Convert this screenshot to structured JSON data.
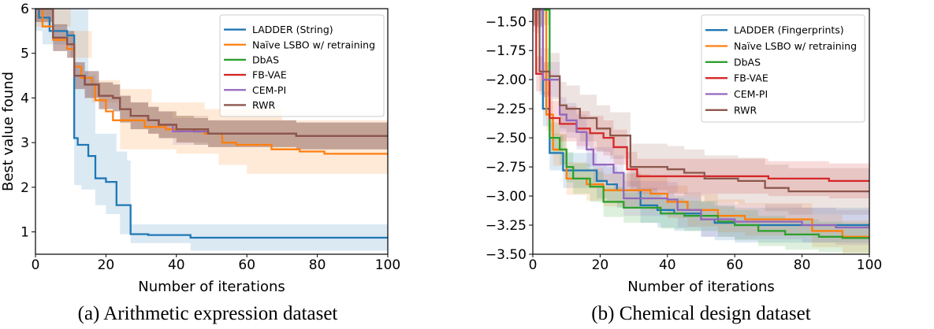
{
  "chart_data": [
    {
      "type": "line",
      "caption": "(a) Arithmetic expression dataset",
      "xlabel": "Number of iterations",
      "ylabel": "Best value found",
      "xlim": [
        0,
        100
      ],
      "ylim": [
        0.5,
        6
      ],
      "xticks": [
        0,
        20,
        40,
        60,
        80,
        100
      ],
      "xtick_labels": [
        "0",
        "20",
        "40",
        "60",
        "80",
        "100"
      ],
      "yticks": [
        1,
        2,
        3,
        4,
        5,
        6
      ],
      "ytick_labels": [
        "1",
        "2",
        "3",
        "4",
        "5",
        "6"
      ],
      "grid": false,
      "legend_position": "top-right",
      "series": [
        {
          "name": "LADDER (String)",
          "color": "#1f77b4",
          "points": [
            [
              0,
              6
            ],
            [
              1,
              5.8
            ],
            [
              4,
              5.5
            ],
            [
              9,
              5.4
            ],
            [
              11,
              3.1
            ],
            [
              12,
              2.95
            ],
            [
              15,
              2.7
            ],
            [
              17,
              2.2
            ],
            [
              20,
              2.12
            ],
            [
              23,
              1.6
            ],
            [
              26,
              1.6
            ],
            [
              27,
              0.95
            ],
            [
              32,
              0.93
            ],
            [
              44,
              0.87
            ],
            [
              100,
              0.87
            ]
          ],
          "upper": [
            [
              0,
              6
            ],
            [
              14,
              6
            ],
            [
              15,
              4.5
            ],
            [
              17,
              3.2
            ],
            [
              23,
              2.8
            ],
            [
              26,
              2.6
            ],
            [
              27,
              1.17
            ],
            [
              100,
              1.17
            ]
          ],
          "lower": [
            [
              0,
              5.5
            ],
            [
              2,
              5.2
            ],
            [
              10,
              4.9
            ],
            [
              11,
              2.05
            ],
            [
              13,
              1.95
            ],
            [
              17,
              1.6
            ],
            [
              20,
              1.4
            ],
            [
              24,
              0.95
            ],
            [
              27,
              0.75
            ],
            [
              44,
              0.58
            ],
            [
              100,
              0.58
            ]
          ]
        },
        {
          "name": "Naïve LSBO w/ retraining",
          "color": "#ff7f0e",
          "points": [
            [
              0,
              6
            ],
            [
              2,
              5.6
            ],
            [
              5,
              5.3
            ],
            [
              9,
              5.1
            ],
            [
              11,
              4.7
            ],
            [
              13,
              4.45
            ],
            [
              16,
              4.3
            ],
            [
              17,
              3.95
            ],
            [
              20,
              3.7
            ],
            [
              22,
              3.5
            ],
            [
              28,
              3.5
            ],
            [
              31,
              3.35
            ],
            [
              37,
              3.3
            ],
            [
              46,
              3.3
            ],
            [
              48,
              3.2
            ],
            [
              53,
              3.0
            ],
            [
              57,
              2.95
            ],
            [
              67,
              2.85
            ],
            [
              75,
              2.8
            ],
            [
              82,
              2.75
            ],
            [
              100,
              2.75
            ]
          ],
          "upper": [
            [
              0,
              6
            ],
            [
              10,
              5.5
            ],
            [
              16,
              4.4
            ],
            [
              24,
              4.2
            ],
            [
              33,
              3.9
            ],
            [
              48,
              3.75
            ],
            [
              70,
              3.5
            ],
            [
              100,
              3.45
            ]
          ],
          "lower": [
            [
              0,
              5.6
            ],
            [
              10,
              4.9
            ],
            [
              16,
              3.9
            ],
            [
              24,
              2.85
            ],
            [
              40,
              2.75
            ],
            [
              52,
              2.5
            ],
            [
              60,
              2.3
            ],
            [
              100,
              2.3
            ]
          ]
        },
        {
          "name": "DbAS",
          "color": "#2ca02c",
          "spread": 0.3,
          "points": [
            [
              0,
              6
            ],
            [
              2,
              6
            ],
            [
              5,
              5.35
            ],
            [
              9,
              5.2
            ],
            [
              11,
              4.5
            ],
            [
              14,
              4.3
            ],
            [
              18,
              4.05
            ],
            [
              22,
              4.0
            ],
            [
              24,
              3.75
            ],
            [
              27,
              3.6
            ],
            [
              32,
              3.5
            ],
            [
              35,
              3.4
            ],
            [
              40,
              3.3
            ],
            [
              45,
              3.25
            ],
            [
              49,
              3.2
            ],
            [
              72,
              3.2
            ],
            [
              74,
              3.15
            ],
            [
              100,
              3.15
            ]
          ]
        },
        {
          "name": "FB-VAE",
          "color": "#d62728",
          "spread": 0.3,
          "points": [
            [
              0,
              6
            ],
            [
              2,
              6
            ],
            [
              5,
              5.35
            ],
            [
              9,
              5.2
            ],
            [
              11,
              4.5
            ],
            [
              14,
              4.3
            ],
            [
              18,
              4.05
            ],
            [
              22,
              4.0
            ],
            [
              24,
              3.75
            ],
            [
              27,
              3.6
            ],
            [
              32,
              3.5
            ],
            [
              35,
              3.4
            ],
            [
              40,
              3.3
            ],
            [
              45,
              3.25
            ],
            [
              49,
              3.2
            ],
            [
              72,
              3.2
            ],
            [
              74,
              3.15
            ],
            [
              100,
              3.15
            ]
          ]
        },
        {
          "name": "CEM-PI",
          "color": "#9467bd",
          "spread": 0.3,
          "points": [
            [
              0,
              6
            ],
            [
              2,
              6
            ],
            [
              5,
              5.35
            ],
            [
              9,
              5.2
            ],
            [
              11,
              4.5
            ],
            [
              14,
              4.3
            ],
            [
              18,
              4.05
            ],
            [
              22,
              4.0
            ],
            [
              24,
              3.75
            ],
            [
              27,
              3.6
            ],
            [
              32,
              3.5
            ],
            [
              35,
              3.4
            ],
            [
              39,
              3.25
            ],
            [
              47,
              3.25
            ],
            [
              49,
              3.2
            ],
            [
              72,
              3.2
            ],
            [
              74,
              3.15
            ],
            [
              100,
              3.15
            ]
          ]
        },
        {
          "name": "RWR",
          "color": "#8c564b",
          "spread": 0.3,
          "points": [
            [
              0,
              6
            ],
            [
              2,
              6
            ],
            [
              5,
              5.35
            ],
            [
              9,
              5.2
            ],
            [
              11,
              4.5
            ],
            [
              14,
              4.3
            ],
            [
              18,
              4.05
            ],
            [
              22,
              4.0
            ],
            [
              24,
              3.75
            ],
            [
              27,
              3.6
            ],
            [
              32,
              3.5
            ],
            [
              35,
              3.4
            ],
            [
              40,
              3.3
            ],
            [
              45,
              3.3
            ],
            [
              49,
              3.2
            ],
            [
              72,
              3.2
            ],
            [
              74,
              3.15
            ],
            [
              100,
              3.15
            ]
          ]
        }
      ]
    },
    {
      "type": "line",
      "caption": "(b) Chemical design dataset",
      "xlabel": "Number of iterations",
      "ylabel": "",
      "xlim": [
        0,
        100
      ],
      "ylim": [
        -3.5,
        -1.39
      ],
      "xticks": [
        0,
        20,
        40,
        60,
        80,
        100
      ],
      "xtick_labels": [
        "0",
        "20",
        "40",
        "60",
        "80",
        "100"
      ],
      "yticks": [
        -1.5,
        -1.75,
        -2.0,
        -2.25,
        -2.5,
        -2.75,
        -3.0,
        -3.25,
        -3.5
      ],
      "ytick_labels": [
        "−1.50",
        "−1.75",
        "−2.00",
        "−2.25",
        "−2.50",
        "−2.75",
        "−3.00",
        "−3.25",
        "−3.50"
      ],
      "grid": false,
      "legend_position": "top-right",
      "series": [
        {
          "name": "LADDER (Fingerprints)",
          "color": "#1f77b4",
          "spread": 0.15,
          "points": [
            [
              0,
              -1.39
            ],
            [
              1,
              -1.4
            ],
            [
              3,
              -2.25
            ],
            [
              5,
              -2.63
            ],
            [
              7,
              -2.63
            ],
            [
              9,
              -2.78
            ],
            [
              16,
              -2.78
            ],
            [
              19,
              -2.87
            ],
            [
              22,
              -2.9
            ],
            [
              25,
              -2.95
            ],
            [
              29,
              -2.95
            ],
            [
              32,
              -3.08
            ],
            [
              37,
              -3.12
            ],
            [
              42,
              -3.15
            ],
            [
              50,
              -3.2
            ],
            [
              54,
              -3.23
            ],
            [
              60,
              -3.25
            ],
            [
              100,
              -3.25
            ]
          ]
        },
        {
          "name": "Naïve LSBO w/ retraining",
          "color": "#ff7f0e",
          "spread": 0.14,
          "points": [
            [
              0,
              -1.39
            ],
            [
              1,
              -1.4
            ],
            [
              4,
              -2.3
            ],
            [
              6,
              -2.6
            ],
            [
              10,
              -2.85
            ],
            [
              16,
              -2.9
            ],
            [
              21,
              -2.95
            ],
            [
              30,
              -2.95
            ],
            [
              35,
              -2.98
            ],
            [
              40,
              -3.05
            ],
            [
              46,
              -3.12
            ],
            [
              55,
              -3.17
            ],
            [
              63,
              -3.2
            ],
            [
              82,
              -3.2
            ],
            [
              83,
              -3.3
            ],
            [
              92,
              -3.35
            ],
            [
              100,
              -3.35
            ]
          ]
        },
        {
          "name": "DbAS",
          "color": "#2ca02c",
          "spread": 0.13,
          "points": [
            [
              0,
              -1.39
            ],
            [
              2,
              -1.4
            ],
            [
              5,
              -2.5
            ],
            [
              8,
              -2.6
            ],
            [
              10,
              -2.75
            ],
            [
              12,
              -2.85
            ],
            [
              17,
              -2.92
            ],
            [
              21,
              -3.05
            ],
            [
              27,
              -3.1
            ],
            [
              38,
              -3.15
            ],
            [
              45,
              -3.17
            ],
            [
              55,
              -3.22
            ],
            [
              60,
              -3.25
            ],
            [
              67,
              -3.3
            ],
            [
              75,
              -3.33
            ],
            [
              85,
              -3.35
            ],
            [
              92,
              -3.36
            ],
            [
              100,
              -3.36
            ]
          ]
        },
        {
          "name": "FB-VAE",
          "color": "#d62728",
          "spread": 0.15,
          "points": [
            [
              0,
              -1.39
            ],
            [
              1,
              -1.95
            ],
            [
              3,
              -2.0
            ],
            [
              5,
              -2.33
            ],
            [
              8,
              -2.38
            ],
            [
              13,
              -2.42
            ],
            [
              17,
              -2.46
            ],
            [
              21,
              -2.5
            ],
            [
              24,
              -2.58
            ],
            [
              28,
              -2.77
            ],
            [
              31,
              -2.83
            ],
            [
              60,
              -2.83
            ],
            [
              70,
              -2.85
            ],
            [
              88,
              -2.87
            ],
            [
              100,
              -2.87
            ]
          ]
        },
        {
          "name": "CEM-PI",
          "color": "#9467bd",
          "spread": 0.15,
          "points": [
            [
              0,
              -1.39
            ],
            [
              1,
              -1.4
            ],
            [
              3,
              -2.0
            ],
            [
              8,
              -2.3
            ],
            [
              10,
              -2.35
            ],
            [
              13,
              -2.45
            ],
            [
              16,
              -2.6
            ],
            [
              18,
              -2.73
            ],
            [
              24,
              -2.8
            ],
            [
              27,
              -3.02
            ],
            [
              40,
              -3.03
            ],
            [
              43,
              -3.12
            ],
            [
              50,
              -3.2
            ],
            [
              60,
              -3.22
            ],
            [
              80,
              -3.25
            ],
            [
              90,
              -3.27
            ],
            [
              100,
              -3.27
            ]
          ]
        },
        {
          "name": "RWR",
          "color": "#8c564b",
          "spread": 0.2,
          "points": [
            [
              0,
              -1.39
            ],
            [
              1,
              -1.4
            ],
            [
              2,
              -1.93
            ],
            [
              5,
              -1.97
            ],
            [
              8,
              -2.22
            ],
            [
              10,
              -2.25
            ],
            [
              14,
              -2.33
            ],
            [
              19,
              -2.42
            ],
            [
              23,
              -2.48
            ],
            [
              29,
              -2.75
            ],
            [
              40,
              -2.77
            ],
            [
              45,
              -2.8
            ],
            [
              51,
              -2.85
            ],
            [
              61,
              -2.87
            ],
            [
              69,
              -2.93
            ],
            [
              76,
              -2.96
            ],
            [
              100,
              -2.96
            ]
          ]
        }
      ]
    }
  ]
}
